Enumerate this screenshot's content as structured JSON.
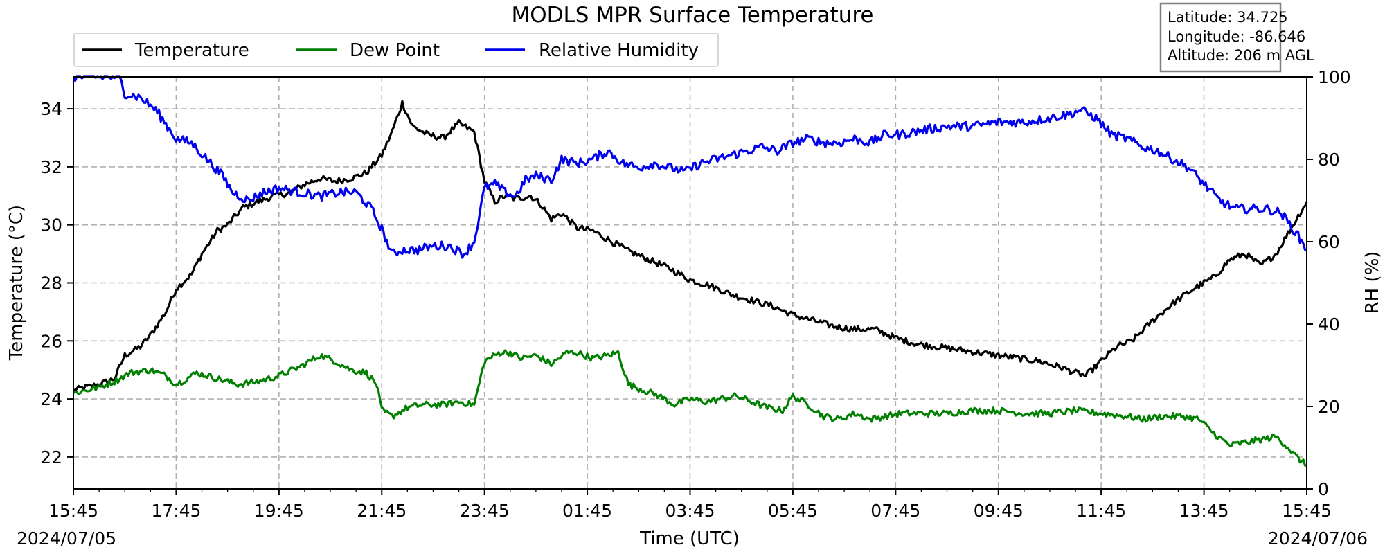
{
  "chart_data": {
    "type": "line",
    "title": "MODLS MPR Surface Temperature",
    "xlabel": "Time (UTC)",
    "ylabel": "Temperature ($^\\circ$C)",
    "ylabel_display": "Temperature (°C)",
    "y2label": "RH (%)",
    "ylim": [
      20.9,
      35.1
    ],
    "y2lim": [
      0,
      100
    ],
    "xlim_hours": [
      0,
      24
    ],
    "yticks": [
      22,
      24,
      26,
      28,
      30,
      32,
      34
    ],
    "y2ticks": [
      0,
      20,
      40,
      60,
      80,
      100
    ],
    "xticks": [
      {
        "h": 0,
        "label": "15:45"
      },
      {
        "h": 2,
        "label": "17:45"
      },
      {
        "h": 4,
        "label": "19:45"
      },
      {
        "h": 6,
        "label": "21:45"
      },
      {
        "h": 8,
        "label": "23:45"
      },
      {
        "h": 10,
        "label": "01:45"
      },
      {
        "h": 12,
        "label": "03:45"
      },
      {
        "h": 14,
        "label": "05:45"
      },
      {
        "h": 16,
        "label": "07:45"
      },
      {
        "h": 18,
        "label": "09:45"
      },
      {
        "h": 20,
        "label": "11:45"
      },
      {
        "h": 22,
        "label": "13:45"
      },
      {
        "h": 24,
        "label": "15:45"
      }
    ],
    "date_start": "2024/07/05",
    "date_end": "2024/07/06",
    "grid": true,
    "legend_position": "top-left",
    "info_box": [
      "Latitude: 34.725",
      "Longitude: -86.646",
      "Altitude: 206 m AGL"
    ],
    "series": [
      {
        "name": "Temperature",
        "axis": "left",
        "color": "#000000",
        "points": [
          [
            0,
            24.3
          ],
          [
            0.5,
            24.5
          ],
          [
            0.8,
            24.7
          ],
          [
            1.0,
            25.5
          ],
          [
            1.3,
            25.8
          ],
          [
            1.5,
            26.2
          ],
          [
            1.8,
            27.0
          ],
          [
            2.0,
            27.8
          ],
          [
            2.3,
            28.3
          ],
          [
            2.5,
            29.0
          ],
          [
            2.8,
            29.8
          ],
          [
            3.0,
            30.0
          ],
          [
            3.3,
            30.6
          ],
          [
            3.6,
            30.8
          ],
          [
            3.9,
            31.0
          ],
          [
            4.2,
            31.1
          ],
          [
            4.5,
            31.4
          ],
          [
            4.8,
            31.6
          ],
          [
            5.1,
            31.5
          ],
          [
            5.4,
            31.6
          ],
          [
            5.7,
            31.8
          ],
          [
            6.0,
            32.4
          ],
          [
            6.2,
            33.2
          ],
          [
            6.4,
            34.2
          ],
          [
            6.6,
            33.4
          ],
          [
            6.9,
            33.1
          ],
          [
            7.2,
            33.0
          ],
          [
            7.5,
            33.5
          ],
          [
            7.8,
            33.2
          ],
          [
            8.0,
            31.5
          ],
          [
            8.2,
            30.8
          ],
          [
            8.4,
            31.0
          ],
          [
            8.6,
            30.9
          ],
          [
            8.9,
            31.0
          ],
          [
            9.1,
            30.7
          ],
          [
            9.3,
            30.2
          ],
          [
            9.5,
            30.4
          ],
          [
            9.8,
            29.9
          ],
          [
            10.1,
            29.8
          ],
          [
            10.4,
            29.5
          ],
          [
            10.8,
            29.1
          ],
          [
            11.2,
            28.8
          ],
          [
            11.6,
            28.5
          ],
          [
            12.0,
            28.1
          ],
          [
            12.4,
            27.9
          ],
          [
            12.8,
            27.6
          ],
          [
            13.2,
            27.4
          ],
          [
            13.6,
            27.2
          ],
          [
            14.0,
            26.9
          ],
          [
            14.4,
            26.7
          ],
          [
            14.8,
            26.5
          ],
          [
            15.2,
            26.4
          ],
          [
            15.6,
            26.4
          ],
          [
            16.0,
            26.1
          ],
          [
            16.4,
            25.9
          ],
          [
            16.8,
            25.8
          ],
          [
            17.2,
            25.7
          ],
          [
            17.6,
            25.6
          ],
          [
            18.0,
            25.5
          ],
          [
            18.4,
            25.4
          ],
          [
            18.8,
            25.3
          ],
          [
            19.2,
            25.1
          ],
          [
            19.5,
            24.9
          ],
          [
            19.7,
            24.8
          ],
          [
            20.0,
            25.3
          ],
          [
            20.3,
            25.8
          ],
          [
            20.6,
            26.0
          ],
          [
            21.0,
            26.7
          ],
          [
            21.4,
            27.3
          ],
          [
            21.8,
            27.8
          ],
          [
            22.2,
            28.2
          ],
          [
            22.5,
            28.8
          ],
          [
            22.8,
            29.0
          ],
          [
            23.1,
            28.6
          ],
          [
            23.4,
            29.0
          ],
          [
            23.7,
            29.9
          ],
          [
            24.0,
            30.8
          ]
        ]
      },
      {
        "name": "Dew Point",
        "axis": "left",
        "color": "#007f00",
        "points": [
          [
            0,
            24.2
          ],
          [
            0.5,
            24.4
          ],
          [
            0.8,
            24.6
          ],
          [
            1.1,
            24.9
          ],
          [
            1.5,
            25.0
          ],
          [
            1.8,
            24.8
          ],
          [
            2.0,
            24.5
          ],
          [
            2.4,
            24.9
          ],
          [
            2.8,
            24.7
          ],
          [
            3.2,
            24.5
          ],
          [
            3.6,
            24.6
          ],
          [
            4.0,
            24.8
          ],
          [
            4.4,
            25.1
          ],
          [
            4.8,
            25.5
          ],
          [
            5.1,
            25.3
          ],
          [
            5.4,
            25.0
          ],
          [
            5.7,
            24.9
          ],
          [
            5.9,
            24.5
          ],
          [
            6.0,
            23.6
          ],
          [
            6.2,
            23.4
          ],
          [
            6.5,
            23.7
          ],
          [
            6.8,
            23.8
          ],
          [
            7.2,
            23.8
          ],
          [
            7.5,
            23.9
          ],
          [
            7.8,
            23.8
          ],
          [
            8.0,
            25.3
          ],
          [
            8.3,
            25.6
          ],
          [
            8.5,
            25.6
          ],
          [
            8.7,
            25.4
          ],
          [
            9.0,
            25.5
          ],
          [
            9.3,
            25.2
          ],
          [
            9.6,
            25.6
          ],
          [
            9.8,
            25.6
          ],
          [
            10.1,
            25.4
          ],
          [
            10.4,
            25.5
          ],
          [
            10.6,
            25.6
          ],
          [
            10.8,
            24.5
          ],
          [
            11.1,
            24.3
          ],
          [
            11.4,
            24.1
          ],
          [
            11.7,
            23.8
          ],
          [
            12.0,
            24.0
          ],
          [
            12.3,
            23.9
          ],
          [
            12.6,
            24.0
          ],
          [
            12.9,
            24.1
          ],
          [
            13.2,
            23.9
          ],
          [
            13.5,
            23.7
          ],
          [
            13.8,
            23.6
          ],
          [
            14.0,
            24.1
          ],
          [
            14.3,
            23.8
          ],
          [
            14.6,
            23.4
          ],
          [
            14.9,
            23.3
          ],
          [
            15.2,
            23.5
          ],
          [
            15.5,
            23.3
          ],
          [
            15.8,
            23.4
          ],
          [
            16.1,
            23.5
          ],
          [
            16.5,
            23.5
          ],
          [
            17.0,
            23.5
          ],
          [
            17.5,
            23.6
          ],
          [
            18.0,
            23.6
          ],
          [
            18.5,
            23.5
          ],
          [
            19.0,
            23.5
          ],
          [
            19.5,
            23.6
          ],
          [
            20.0,
            23.5
          ],
          [
            20.5,
            23.4
          ],
          [
            20.8,
            23.3
          ],
          [
            21.2,
            23.4
          ],
          [
            21.6,
            23.4
          ],
          [
            21.9,
            23.3
          ],
          [
            22.2,
            22.8
          ],
          [
            22.5,
            22.4
          ],
          [
            22.8,
            22.5
          ],
          [
            23.1,
            22.6
          ],
          [
            23.4,
            22.7
          ],
          [
            23.6,
            22.4
          ],
          [
            23.8,
            22.0
          ],
          [
            24.0,
            21.7
          ]
        ]
      },
      {
        "name": "Relative Humidity",
        "axis": "right",
        "color": "#0000ee",
        "points": [
          [
            0,
            100
          ],
          [
            0.5,
            100
          ],
          [
            0.9,
            100
          ],
          [
            1.0,
            96
          ],
          [
            1.3,
            95
          ],
          [
            1.6,
            92
          ],
          [
            2.0,
            85
          ],
          [
            2.3,
            84
          ],
          [
            2.6,
            80
          ],
          [
            2.9,
            76
          ],
          [
            3.1,
            72
          ],
          [
            3.4,
            70
          ],
          [
            3.7,
            72
          ],
          [
            4.0,
            73
          ],
          [
            4.4,
            72
          ],
          [
            4.8,
            71
          ],
          [
            5.2,
            72
          ],
          [
            5.5,
            72
          ],
          [
            5.8,
            68
          ],
          [
            6.0,
            63
          ],
          [
            6.2,
            57
          ],
          [
            6.4,
            58
          ],
          [
            6.7,
            58
          ],
          [
            7.0,
            59
          ],
          [
            7.3,
            59
          ],
          [
            7.6,
            57
          ],
          [
            7.8,
            60
          ],
          [
            8.0,
            73
          ],
          [
            8.2,
            74
          ],
          [
            8.4,
            72
          ],
          [
            8.6,
            71
          ],
          [
            8.8,
            75
          ],
          [
            9.0,
            76
          ],
          [
            9.3,
            75
          ],
          [
            9.5,
            80
          ],
          [
            9.8,
            79
          ],
          [
            10.1,
            80
          ],
          [
            10.4,
            82
          ],
          [
            10.7,
            79
          ],
          [
            11.0,
            78
          ],
          [
            11.3,
            79
          ],
          [
            11.6,
            78
          ],
          [
            11.9,
            77
          ],
          [
            12.2,
            79
          ],
          [
            12.5,
            80
          ],
          [
            12.8,
            81
          ],
          [
            13.1,
            82
          ],
          [
            13.4,
            83
          ],
          [
            13.7,
            82
          ],
          [
            14.0,
            84
          ],
          [
            14.3,
            85
          ],
          [
            14.6,
            84
          ],
          [
            14.9,
            84
          ],
          [
            15.2,
            85
          ],
          [
            15.5,
            84
          ],
          [
            15.8,
            86
          ],
          [
            16.1,
            86
          ],
          [
            16.5,
            87
          ],
          [
            17.0,
            88
          ],
          [
            17.5,
            88
          ],
          [
            18.0,
            89
          ],
          [
            18.5,
            89
          ],
          [
            19.0,
            90
          ],
          [
            19.4,
            91
          ],
          [
            19.6,
            92
          ],
          [
            19.9,
            90
          ],
          [
            20.2,
            86
          ],
          [
            20.5,
            85
          ],
          [
            20.8,
            83
          ],
          [
            21.1,
            82
          ],
          [
            21.4,
            80
          ],
          [
            21.7,
            78
          ],
          [
            22.0,
            74
          ],
          [
            22.3,
            70
          ],
          [
            22.6,
            68
          ],
          [
            22.9,
            68
          ],
          [
            23.2,
            68
          ],
          [
            23.5,
            67
          ],
          [
            23.8,
            62
          ],
          [
            24.0,
            58
          ]
        ]
      }
    ]
  }
}
